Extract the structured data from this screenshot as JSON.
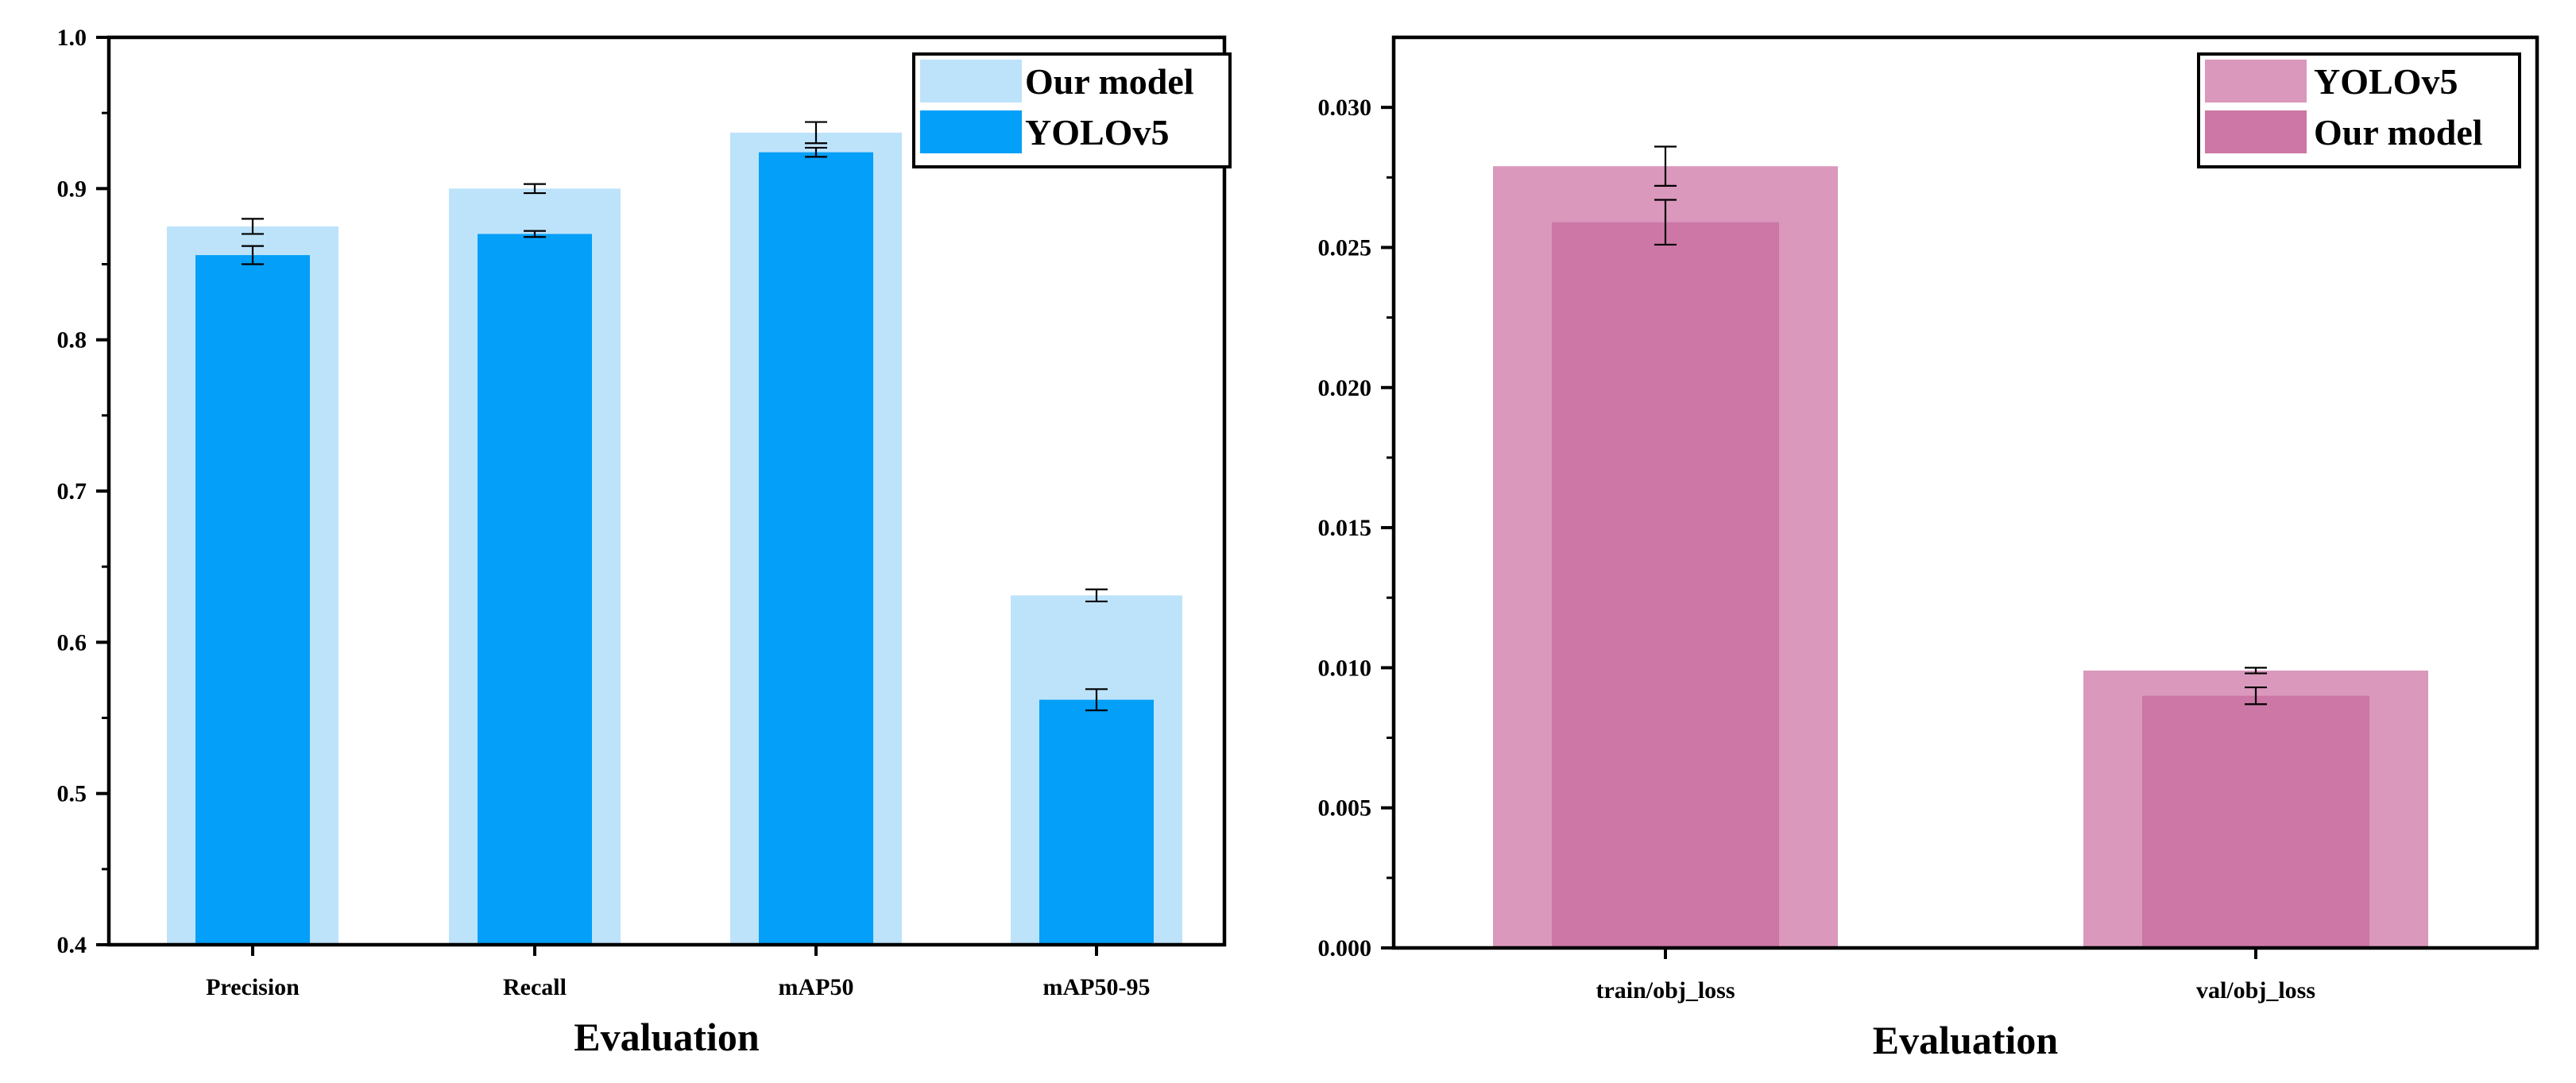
{
  "chart_data": [
    {
      "type": "bar",
      "title": "",
      "xlabel": "Evaluation",
      "ylabel": "",
      "ylim": [
        0.4,
        1.0
      ],
      "yticks": [
        "0.4",
        "0.5",
        "0.6",
        "0.7",
        "0.8",
        "0.9",
        "1.0"
      ],
      "categories": [
        "Precision",
        "Recall",
        "mAP50",
        "mAP50-95"
      ],
      "legend_position": "top-right",
      "series": [
        {
          "name": "Our model",
          "color": "#bde3fb",
          "role": "wide-back",
          "values": [
            0.875,
            0.9,
            0.937,
            0.631
          ],
          "errors": [
            0.005,
            0.003,
            0.007,
            0.004
          ]
        },
        {
          "name": "YOLOv5",
          "color": "#049ff8",
          "role": "narrow-front",
          "values": [
            0.856,
            0.87,
            0.924,
            0.562
          ],
          "errors": [
            0.006,
            0.002,
            0.003,
            0.007
          ]
        }
      ]
    },
    {
      "type": "bar",
      "title": "",
      "xlabel": "Evaluation",
      "ylabel": "",
      "ylim": [
        0.0,
        0.0325
      ],
      "yticks": [
        "0.000",
        "0.005",
        "0.010",
        "0.015",
        "0.020",
        "0.025",
        "0.030"
      ],
      "categories": [
        "train/obj_loss",
        "val/obj_loss"
      ],
      "legend_position": "top-right",
      "series": [
        {
          "name": "YOLOv5",
          "color": "#da98bc",
          "role": "wide-back",
          "values": [
            0.0279,
            0.0099
          ],
          "errors": [
            0.0007,
            0.0001
          ]
        },
        {
          "name": "Our model",
          "color": "#cc77a6",
          "role": "narrow-front",
          "values": [
            0.0259,
            0.009
          ],
          "errors": [
            0.0008,
            0.0003
          ]
        }
      ]
    }
  ]
}
